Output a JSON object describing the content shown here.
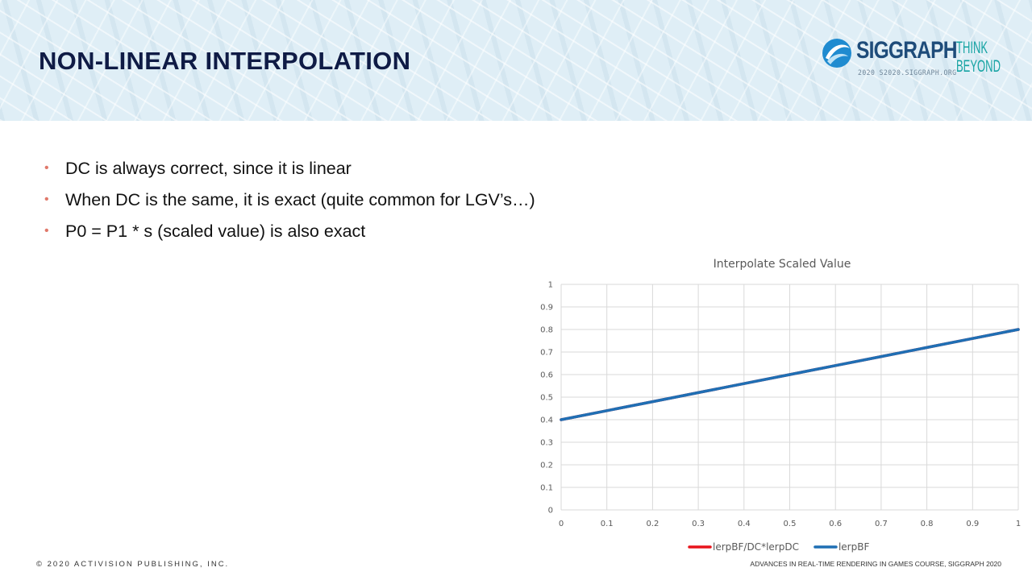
{
  "slide": {
    "title": "NON-LINEAR INTERPOLATION",
    "bullets": [
      "DC is always correct, since it is linear",
      "When DC is the same, it is exact (quite common for LGV’s…)",
      "P0 = P1 * s (scaled value) is also exact"
    ],
    "footer_left": "© 2020 ACTIVISION PUBLISHING, INC.",
    "footer_right": "ADVANCES IN REAL-TIME RENDERING IN GAMES COURSE, SIGGRAPH 2020"
  },
  "logo": {
    "word": "SIGGRAPH",
    "think": "THINK",
    "beyond": "BEYOND",
    "sub": "2020  S2020.SIGGRAPH.ORG"
  },
  "colors": {
    "title": "#0f1b45",
    "bullet_dot": "#e0786a",
    "series_red": "#e8141c",
    "series_blue": "#1f6fb4",
    "grid": "#d9d9d9"
  },
  "chart_data": {
    "type": "line",
    "title": "Interpolate Scaled Value",
    "xlim": [
      0,
      1
    ],
    "ylim": [
      0,
      1
    ],
    "x": [
      0,
      0.1,
      0.2,
      0.3,
      0.4,
      0.5,
      0.6,
      0.7,
      0.8,
      0.9,
      1
    ],
    "x_ticks": [
      "0",
      "0.1",
      "0.2",
      "0.3",
      "0.4",
      "0.5",
      "0.6",
      "0.7",
      "0.8",
      "0.9",
      "1"
    ],
    "y_ticks": [
      "0",
      "0.1",
      "0.2",
      "0.3",
      "0.4",
      "0.5",
      "0.6",
      "0.7",
      "0.8",
      "0.9",
      "1"
    ],
    "grid": true,
    "legend_position": "bottom",
    "series": [
      {
        "name": "lerpBF/DC*lerpDC",
        "color": "#e8141c",
        "values": [
          0.4,
          0.44,
          0.48,
          0.52,
          0.56,
          0.6,
          0.64,
          0.68,
          0.72,
          0.76,
          0.8
        ]
      },
      {
        "name": "lerpBF",
        "color": "#1f6fb4",
        "values": [
          0.4,
          0.44,
          0.48,
          0.52,
          0.56,
          0.6,
          0.64,
          0.68,
          0.72,
          0.76,
          0.8
        ]
      }
    ]
  }
}
